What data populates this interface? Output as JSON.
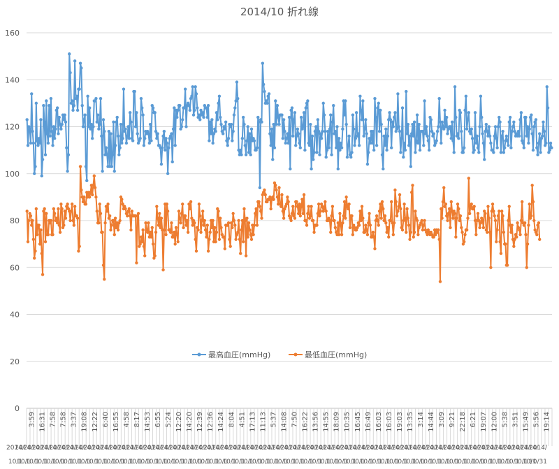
{
  "chart_data": {
    "type": "line",
    "title": "2014/10 折れ線",
    "ylim": [
      0,
      160
    ],
    "y_ticks": [
      0,
      20,
      40,
      60,
      80,
      100,
      120,
      140,
      160
    ],
    "grid": "horizontal",
    "legend_position": "center",
    "x_time_labels": [
      "3:59",
      "16:31",
      "7:58",
      "7:58",
      "3:37",
      "19:08",
      "12:22",
      "6:40",
      "16:55",
      "4:58",
      "8:17",
      "14:53",
      "6:55",
      "5:24",
      "12:20",
      "14:20",
      "12:39",
      "12:36",
      "14:24",
      "8:04",
      "4:51",
      "17:13",
      "11:13",
      "5:37",
      "14:08",
      "7:50",
      "16:22",
      "13:56",
      "14:55",
      "18:09",
      "10:35",
      "16:45",
      "16:49",
      "16:03",
      "16:03",
      "19:03",
      "13:35",
      "3:14",
      "14:44",
      "3:09",
      "9:21",
      "22:18",
      "6:21",
      "19:07",
      "12:00",
      "5:38",
      "3:51",
      "15:49",
      "5:56",
      "19:14"
    ],
    "x_date_label_row1": "2014/",
    "x_date_label_row2": "10/1",
    "x_date_label_last_row1": "2014/",
    "x_date_label_last_row2": "10/31",
    "series": [
      {
        "name": "最高血圧(mmHg)",
        "color": "#5b9bd5",
        "values": [
          123,
          112,
          120,
          119,
          113,
          134,
          118,
          113,
          100,
          103,
          130,
          114,
          112,
          115,
          113,
          123,
          99,
          106,
          129,
          122,
          108,
          131,
          117,
          113,
          129,
          116,
          132,
          118,
          112,
          120,
          115,
          119,
          127,
          128,
          117,
          124,
          121,
          119,
          121,
          125,
          123,
          125,
          122,
          111,
          101,
          108,
          151,
          143,
          130,
          131,
          127,
          129,
          148,
          132,
          133,
          127,
          136,
          136,
          147,
          145,
          129,
          120,
          123,
          125,
          103,
          97,
          133,
          120,
          128,
          119,
          121,
          115,
          120,
          131,
          131,
          132,
          122,
          125,
          119,
          121,
          132,
          116,
          101,
          123,
          118,
          108,
          111,
          108,
          103,
          118,
          103,
          117,
          103,
          108,
          122,
          101,
          112,
          122,
          124,
          116,
          108,
          111,
          121,
          113,
          115,
          136,
          118,
          119,
          113,
          116,
          120,
          115,
          126,
          122,
          115,
          114,
          135,
          135,
          120,
          126,
          117,
          113,
          114,
          115,
          132,
          128,
          125,
          112,
          115,
          118,
          117,
          118,
          117,
          113,
          121,
          114,
          129,
          128,
          126,
          126,
          118,
          115,
          117,
          112,
          112,
          111,
          104,
          111,
          116,
          118,
          110,
          115,
          113,
          100,
          111,
          115,
          116,
          117,
          105,
          119,
          128,
          112,
          127,
          124,
          127,
          129,
          129,
          119,
          120,
          123,
          128,
          128,
          136,
          120,
          129,
          130,
          129,
          127,
          132,
          133,
          137,
          125,
          127,
          137,
          134,
          128,
          124,
          125,
          123,
          127,
          125,
          126,
          124,
          129,
          128,
          128,
          124,
          129,
          114,
          122,
          117,
          123,
          113,
          117,
          119,
          118,
          126,
          123,
          130,
          133,
          124,
          121,
          118,
          117,
          120,
          119,
          122,
          114,
          112,
          115,
          121,
          120,
          121,
          114,
          118,
          125,
          128,
          131,
          139,
          132,
          110,
          108,
          110,
          108,
          115,
          124,
          121,
          112,
          108,
          114,
          120,
          109,
          117,
          108,
          119,
          114,
          115,
          114,
          110,
          110,
          111,
          124,
          122,
          94,
          123,
          122,
          147,
          138,
          135,
          130,
          131,
          130,
          133,
          134,
          117,
          112,
          119,
          106,
          121,
          111,
          131,
          121,
          129,
          124,
          121,
          125,
          125,
          125,
          115,
          123,
          118,
          113,
          115,
          117,
          113,
          124,
          102,
          127,
          128,
          116,
          123,
          126,
          112,
          116,
          119,
          117,
          113,
          111,
          124,
          119,
          120,
          126,
          110,
          128,
          130,
          131,
          113,
          112,
          121,
          102,
          116,
          106,
          109,
          118,
          120,
          109,
          123,
          118,
          108,
          117,
          115,
          118,
          130,
          125,
          118,
          107,
          110,
          118,
          111,
          119,
          125,
          108,
          122,
          129,
          117,
          118,
          111,
          120,
          102,
          115,
          110,
          113,
          111,
          119,
          131,
          125,
          131,
          121,
          107,
          112,
          116,
          108,
          107,
          109,
          125,
          119,
          112,
          115,
          126,
          116,
          117,
          112,
          133,
          127,
          123,
          131,
          116,
          119,
          123,
          117,
          104,
          109,
          115,
          113,
          118,
          113,
          118,
          110,
          132,
          124,
          112,
          128,
          130,
          118,
          127,
          121,
          108,
          102,
          116,
          112,
          119,
          110,
          116,
          123,
          126,
          123,
          111,
          122,
          120,
          124,
          126,
          118,
          119,
          134,
          120,
          118,
          109,
          115,
          128,
          107,
          113,
          110,
          135,
          117,
          121,
          112,
          116,
          103,
          117,
          121,
          116,
          122,
          109,
          114,
          125,
          113,
          121,
          110,
          118,
          118,
          118,
          112,
          131,
          117,
          120,
          116,
          114,
          110,
          124,
          123,
          118,
          116,
          117,
          112,
          113,
          114,
          118,
          120,
          132,
          122,
          113,
          122,
          120,
          119,
          127,
          120,
          124,
          117,
          119,
          120,
          120,
          115,
          122,
          114,
          109,
          137,
          124,
          116,
          117,
          115,
          127,
          126,
          118,
          109,
          109,
          111,
          127,
          133,
          119,
          123,
          126,
          118,
          117,
          119,
          115,
          109,
          110,
          126,
          113,
          116,
          111,
          109,
          120,
          133,
          124,
          117,
          113,
          106,
          118,
          121,
          118,
          116,
          120,
          116,
          113,
          110,
          110,
          109,
          116,
          120,
          115,
          111,
          120,
          124,
          122,
          109,
          116,
          118,
          109,
          111,
          114,
          116,
          114,
          112,
          122,
          124,
          111,
          118,
          120,
          122,
          118,
          116,
          117,
          116,
          118,
          116,
          123,
          126,
          114,
          113,
          111,
          124,
          124,
          116,
          120,
          113,
          119,
          124,
          125,
          117,
          110,
          120,
          122,
          123,
          111,
          108,
          113,
          117,
          109,
          115,
          116,
          122,
          118,
          112,
          113,
          137,
          128,
          109,
          110,
          113,
          111
        ]
      },
      {
        "name": "最低血圧(mmHg)",
        "color": "#ed7d31",
        "values": [
          84,
          71,
          80,
          83,
          82,
          78,
          80,
          72,
          64,
          67,
          85,
          74,
          78,
          78,
          70,
          76,
          66,
          57,
          84,
          85,
          71,
          83,
          74,
          74,
          80,
          79,
          80,
          74,
          74,
          85,
          83,
          80,
          81,
          79,
          85,
          78,
          75,
          87,
          85,
          77,
          78,
          84,
          81,
          86,
          87,
          85,
          84,
          80,
          84,
          87,
          80,
          78,
          86,
          82,
          82,
          81,
          67,
          69,
          103,
          93,
          90,
          88,
          90,
          87,
          87,
          92,
          90,
          92,
          90,
          92,
          95,
          91,
          95,
          99,
          94,
          90,
          84,
          79,
          79,
          87,
          83,
          75,
          75,
          61,
          55,
          79,
          86,
          84,
          87,
          81,
          82,
          76,
          78,
          80,
          80,
          74,
          81,
          77,
          79,
          76,
          79,
          80,
          90,
          89,
          87,
          85,
          86,
          85,
          83,
          82,
          84,
          85,
          82,
          76,
          84,
          82,
          82,
          82,
          82,
          62,
          82,
          83,
          69,
          70,
          73,
          71,
          76,
          69,
          65,
          79,
          76,
          75,
          79,
          73,
          75,
          73,
          77,
          70,
          64,
          65,
          75,
          86,
          81,
          78,
          83,
          77,
          81,
          76,
          59,
          76,
          87,
          74,
          87,
          84,
          76,
          76,
          75,
          79,
          73,
          73,
          75,
          70,
          77,
          74,
          71,
          84,
          81,
          79,
          83,
          87,
          77,
          82,
          82,
          78,
          80,
          75,
          87,
          85,
          88,
          81,
          78,
          80,
          79,
          72,
          67,
          77,
          76,
          87,
          82,
          75,
          80,
          84,
          78,
          80,
          76,
          73,
          78,
          67,
          72,
          75,
          80,
          77,
          80,
          71,
          77,
          71,
          75,
          85,
          84,
          72,
          81,
          77,
          74,
          73,
          73,
          68,
          78,
          78,
          78,
          79,
          72,
          69,
          79,
          77,
          83,
          80,
          78,
          72,
          74,
          75,
          80,
          72,
          66,
          76,
          80,
          71,
          85,
          80,
          65,
          81,
          73,
          79,
          76,
          74,
          72,
          78,
          74,
          78,
          83,
          85,
          78,
          88,
          88,
          86,
          84,
          81,
          91,
          92,
          93,
          91,
          88,
          88,
          89,
          89,
          90,
          85,
          89,
          90,
          89,
          96,
          95,
          93,
          90,
          87,
          94,
          87,
          86,
          91,
          84,
          81,
          85,
          86,
          87,
          90,
          88,
          82,
          81,
          80,
          83,
          86,
          82,
          81,
          88,
          88,
          86,
          83,
          87,
          82,
          86,
          89,
          83,
          91,
          80,
          80,
          78,
          83,
          86,
          81,
          82,
          86,
          80,
          80,
          75,
          78,
          78,
          78,
          83,
          87,
          82,
          84,
          87,
          86,
          84,
          85,
          88,
          84,
          80,
          80,
          81,
          80,
          75,
          82,
          86,
          80,
          80,
          77,
          75,
          74,
          79,
          74,
          83,
          78,
          74,
          79,
          82,
          88,
          81,
          90,
          86,
          85,
          87,
          77,
          82,
          82,
          74,
          78,
          77,
          76,
          76,
          77,
          79,
          78,
          84,
          80,
          86,
          81,
          75,
          75,
          78,
          76,
          74,
          79,
          83,
          78,
          73,
          73,
          75,
          73,
          68,
          80,
          82,
          80,
          78,
          84,
          87,
          81,
          88,
          85,
          80,
          82,
          79,
          75,
          77,
          73,
          80,
          80,
          88,
          79,
          74,
          79,
          93,
          88,
          82,
          84,
          86,
          91,
          85,
          77,
          76,
          80,
          87,
          81,
          75,
          85,
          81,
          78,
          72,
          75,
          92,
          95,
          73,
          75,
          84,
          81,
          80,
          74,
          77,
          78,
          79,
          80,
          76,
          78,
          80,
          76,
          75,
          74,
          76,
          75,
          74,
          75,
          74,
          73,
          73,
          76,
          74,
          76,
          75,
          76,
          72,
          54,
          85,
          81,
          88,
          94,
          86,
          87,
          82,
          80,
          83,
          85,
          77,
          88,
          84,
          81,
          84,
          83,
          73,
          81,
          87,
          85,
          80,
          82,
          77,
          75,
          70,
          71,
          74,
          76,
          76,
          81,
          98,
          83,
          86,
          87,
          85,
          85,
          86,
          80,
          74,
          80,
          83,
          80,
          77,
          79,
          81,
          80,
          77,
          84,
          83,
          76,
          75,
          86,
          81,
          75,
          60,
          84,
          87,
          84,
          82,
          80,
          71,
          76,
          82,
          84,
          71,
          66,
          84,
          82,
          75,
          70,
          70,
          61,
          61,
          80,
          86,
          78,
          75,
          78,
          72,
          69,
          72,
          74,
          73,
          79,
          77,
          76,
          74,
          80,
          88,
          79,
          78,
          79,
          74,
          60,
          70,
          78,
          87,
          81,
          82,
          95,
          88,
          80,
          76,
          75,
          74,
          78,
          79,
          72
        ]
      }
    ]
  }
}
